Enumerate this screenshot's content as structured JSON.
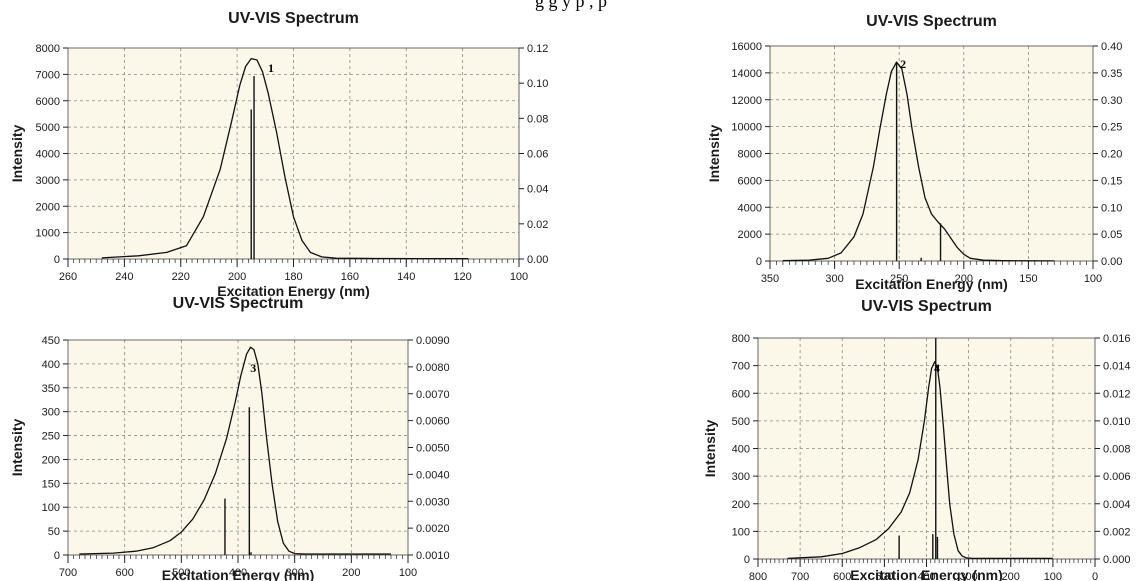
{
  "page": {
    "top_caption": "g       g     y p                ,                                     p"
  },
  "chart_data": [
    {
      "type": "line",
      "title": "UV-VIS Spectrum",
      "xlabel": "Excitation Energy (nm)",
      "ylabel": "Intensity",
      "annotation": "1",
      "x_reversed": true,
      "xlim": [
        260,
        100
      ],
      "ylim": [
        0,
        8000
      ],
      "y2lim": [
        0,
        0.12
      ],
      "xticks": [
        260,
        240,
        220,
        200,
        180,
        160,
        140,
        120,
        100
      ],
      "yticks": [
        0,
        1000,
        2000,
        3000,
        4000,
        5000,
        6000,
        7000,
        8000
      ],
      "y2ticks": [
        "0.00",
        "0.02",
        "0.04",
        "0.06",
        "0.08",
        "0.10",
        "0.12"
      ],
      "curve": {
        "x": [
          248,
          235,
          225,
          218,
          212,
          206,
          202,
          199,
          197,
          195,
          193,
          191,
          189,
          186,
          183,
          180,
          177,
          174,
          170,
          165,
          150,
          135,
          118
        ],
        "y": [
          40,
          120,
          250,
          500,
          1600,
          3400,
          5200,
          6600,
          7300,
          7600,
          7550,
          7100,
          6300,
          4800,
          3100,
          1600,
          700,
          250,
          80,
          30,
          20,
          15,
          10
        ]
      },
      "sticks": {
        "x": [
          195,
          194
        ],
        "y": [
          0.085,
          0.104
        ]
      }
    },
    {
      "type": "line",
      "title": "UV-VIS Spectrum",
      "xlabel": "Excitation Energy (nm)",
      "ylabel": "Intensity",
      "annotation": "2",
      "x_reversed": true,
      "xlim": [
        350,
        100
      ],
      "ylim": [
        0,
        16000
      ],
      "y2lim": [
        0,
        0.4
      ],
      "xticks": [
        350,
        300,
        250,
        200,
        150,
        100
      ],
      "yticks": [
        0,
        2000,
        4000,
        6000,
        8000,
        10000,
        12000,
        14000,
        16000
      ],
      "y2ticks": [
        "0.00",
        "0.05",
        "0.10",
        "0.15",
        "0.20",
        "0.25",
        "0.30",
        "0.35",
        "0.40"
      ],
      "curve": {
        "x": [
          340,
          320,
          305,
          295,
          285,
          278,
          270,
          265,
          260,
          256,
          252,
          248,
          244,
          240,
          235,
          230,
          225,
          220,
          215,
          210,
          205,
          200,
          195,
          185,
          170,
          150,
          130
        ],
        "y": [
          20,
          60,
          200,
          600,
          1800,
          3500,
          7000,
          9800,
          12400,
          14100,
          14800,
          14300,
          12400,
          9800,
          7000,
          4700,
          3500,
          2900,
          2400,
          1700,
          1000,
          500,
          200,
          60,
          20,
          15,
          10
        ]
      },
      "sticks": {
        "x": [
          252,
          233,
          218
        ],
        "y": [
          0.37,
          0.006,
          0.07
        ]
      }
    },
    {
      "type": "line",
      "title": "UV-VIS Spectrum",
      "xlabel": "Excitation Energy (nm)",
      "ylabel": "Intensity",
      "annotation": "3",
      "x_reversed": true,
      "xlim": [
        700,
        100
      ],
      "ylim": [
        0,
        450
      ],
      "y2lim": [
        0.001,
        0.009
      ],
      "xticks": [
        700,
        600,
        500,
        400,
        300,
        200,
        100
      ],
      "yticks": [
        0,
        50,
        100,
        150,
        200,
        250,
        300,
        350,
        400,
        450
      ],
      "y2ticks": [
        "0.0010",
        "0.0020",
        "0.0030",
        "0.0040",
        "0.0050",
        "0.0060",
        "0.0070",
        "0.0080",
        "0.0090"
      ],
      "curve": {
        "x": [
          680,
          620,
          580,
          550,
          520,
          500,
          480,
          460,
          440,
          420,
          405,
          395,
          385,
          378,
          372,
          365,
          358,
          350,
          340,
          330,
          320,
          310,
          300,
          280,
          240,
          200,
          130
        ],
        "y": [
          2,
          4,
          8,
          15,
          30,
          48,
          75,
          115,
          170,
          245,
          320,
          375,
          420,
          435,
          430,
          400,
          340,
          250,
          150,
          70,
          25,
          8,
          3,
          2,
          2,
          2,
          2
        ]
      },
      "sticks": {
        "x": [
          423,
          380,
          377
        ],
        "y": [
          0.0031,
          0.0065,
          0.0011
        ]
      }
    },
    {
      "type": "line",
      "title": "UV-VIS Spectrum",
      "xlabel": "Excitation Energy (nm)",
      "ylabel": "Intensity",
      "annotation": "4",
      "x_reversed": true,
      "xlim": [
        800,
        0
      ],
      "ylim": [
        0,
        800
      ],
      "y2lim": [
        0,
        0.016
      ],
      "xticks": [
        800,
        700,
        600,
        500,
        400,
        300,
        200,
        100,
        0
      ],
      "yticks": [
        0,
        100,
        200,
        300,
        400,
        500,
        600,
        700,
        800
      ],
      "y2ticks": [
        "0.000",
        "0.002",
        "0.004",
        "0.006",
        "0.008",
        "0.010",
        "0.012",
        "0.014",
        "0.016"
      ],
      "curve": {
        "x": [
          730,
          650,
          600,
          560,
          520,
          490,
          460,
          440,
          420,
          405,
          395,
          388,
          380,
          374,
          368,
          360,
          352,
          345,
          335,
          325,
          315,
          305,
          290,
          250,
          200,
          100
        ],
        "y": [
          2,
          8,
          20,
          40,
          70,
          110,
          170,
          240,
          360,
          500,
          620,
          690,
          715,
          690,
          620,
          480,
          330,
          200,
          90,
          30,
          10,
          4,
          2,
          2,
          2,
          2
        ]
      },
      "sticks": {
        "x": [
          465,
          385,
          378,
          374
        ],
        "y": [
          0.0017,
          0.0018,
          0.016,
          0.0016
        ]
      }
    }
  ]
}
